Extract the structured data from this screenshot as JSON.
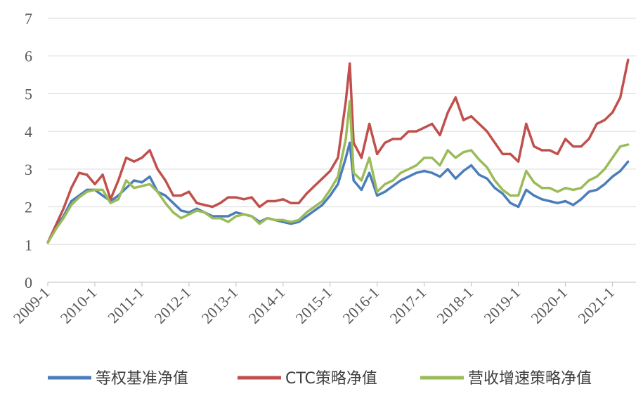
{
  "chart_data": {
    "type": "line",
    "ylim": [
      0,
      7
    ],
    "y_ticks": [
      "0",
      "1",
      "2",
      "3",
      "4",
      "5",
      "6",
      "7"
    ],
    "x_ticks": [
      "2009-1",
      "2010-1",
      "2011-1",
      "2012-1",
      "2013-1",
      "2014-1",
      "2015-1",
      "2016-1",
      "2017-1",
      "2018-1",
      "2019-1",
      "2020-1",
      "2021-1"
    ],
    "legend_position": "bottom",
    "grid": "horizontal",
    "x": [
      "2009-01",
      "2009-03",
      "2009-05",
      "2009-07",
      "2009-09",
      "2009-11",
      "2010-01",
      "2010-03",
      "2010-05",
      "2010-07",
      "2010-09",
      "2010-11",
      "2011-01",
      "2011-03",
      "2011-05",
      "2011-07",
      "2011-09",
      "2011-11",
      "2012-01",
      "2012-03",
      "2012-05",
      "2012-07",
      "2012-09",
      "2012-11",
      "2013-01",
      "2013-03",
      "2013-05",
      "2013-07",
      "2013-09",
      "2013-11",
      "2014-01",
      "2014-03",
      "2014-05",
      "2014-07",
      "2014-09",
      "2014-11",
      "2015-01",
      "2015-03",
      "2015-05",
      "2015-06",
      "2015-07",
      "2015-09",
      "2015-11",
      "2016-01",
      "2016-03",
      "2016-05",
      "2016-07",
      "2016-09",
      "2016-11",
      "2017-01",
      "2017-03",
      "2017-05",
      "2017-07",
      "2017-09",
      "2017-11",
      "2018-01",
      "2018-03",
      "2018-05",
      "2018-07",
      "2018-09",
      "2018-11",
      "2019-01",
      "2019-03",
      "2019-05",
      "2019-07",
      "2019-09",
      "2019-11",
      "2020-01",
      "2020-03",
      "2020-05",
      "2020-07",
      "2020-09",
      "2020-11",
      "2021-01",
      "2021-03",
      "2021-05"
    ],
    "series": [
      {
        "name": "等权基准净值",
        "color": "#4a7ebb",
        "values": [
          1.05,
          1.45,
          1.75,
          2.15,
          2.3,
          2.45,
          2.45,
          2.3,
          2.15,
          2.3,
          2.5,
          2.7,
          2.65,
          2.8,
          2.4,
          2.3,
          2.1,
          1.9,
          1.85,
          1.95,
          1.85,
          1.75,
          1.75,
          1.75,
          1.85,
          1.8,
          1.75,
          1.6,
          1.7,
          1.65,
          1.6,
          1.55,
          1.6,
          1.75,
          1.9,
          2.05,
          2.3,
          2.6,
          3.3,
          3.7,
          2.7,
          2.45,
          2.9,
          2.3,
          2.4,
          2.55,
          2.7,
          2.8,
          2.9,
          2.95,
          2.9,
          2.8,
          3.0,
          2.75,
          2.95,
          3.1,
          2.85,
          2.75,
          2.5,
          2.35,
          2.1,
          2.0,
          2.45,
          2.3,
          2.2,
          2.15,
          2.1,
          2.15,
          2.05,
          2.2,
          2.4,
          2.45,
          2.6,
          2.8,
          2.95,
          3.2
        ]
      },
      {
        "name": "CTC策略净值",
        "color": "#c0504d",
        "values": [
          1.05,
          1.5,
          1.95,
          2.5,
          2.9,
          2.85,
          2.6,
          2.85,
          2.2,
          2.7,
          3.3,
          3.2,
          3.3,
          3.5,
          3.0,
          2.7,
          2.3,
          2.3,
          2.4,
          2.1,
          2.05,
          2.0,
          2.1,
          2.25,
          2.25,
          2.2,
          2.25,
          2.0,
          2.15,
          2.15,
          2.2,
          2.1,
          2.1,
          2.35,
          2.55,
          2.75,
          2.95,
          3.3,
          4.8,
          5.8,
          3.7,
          3.3,
          4.2,
          3.4,
          3.7,
          3.8,
          3.8,
          4.0,
          4.0,
          4.1,
          4.2,
          3.9,
          4.5,
          4.9,
          4.3,
          4.4,
          4.2,
          4.0,
          3.7,
          3.4,
          3.4,
          3.2,
          4.2,
          3.6,
          3.5,
          3.5,
          3.4,
          3.8,
          3.6,
          3.6,
          3.8,
          4.2,
          4.3,
          4.5,
          4.9,
          5.9
        ]
      },
      {
        "name": "营收增速策略净值",
        "color": "#9bbb59",
        "values": [
          1.05,
          1.4,
          1.7,
          2.05,
          2.25,
          2.4,
          2.45,
          2.45,
          2.1,
          2.2,
          2.7,
          2.5,
          2.55,
          2.6,
          2.4,
          2.1,
          1.85,
          1.7,
          1.8,
          1.9,
          1.85,
          1.7,
          1.7,
          1.6,
          1.75,
          1.8,
          1.75,
          1.55,
          1.7,
          1.65,
          1.65,
          1.6,
          1.65,
          1.85,
          2.0,
          2.15,
          2.45,
          2.8,
          3.8,
          4.8,
          2.9,
          2.7,
          3.3,
          2.4,
          2.6,
          2.7,
          2.9,
          3.0,
          3.1,
          3.3,
          3.3,
          3.1,
          3.5,
          3.3,
          3.45,
          3.5,
          3.25,
          3.05,
          2.7,
          2.45,
          2.3,
          2.3,
          2.95,
          2.65,
          2.5,
          2.5,
          2.4,
          2.5,
          2.45,
          2.5,
          2.7,
          2.8,
          3.0,
          3.3,
          3.6,
          3.65
        ]
      }
    ]
  }
}
